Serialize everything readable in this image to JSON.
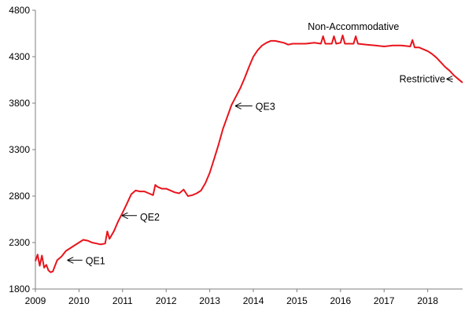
{
  "chart_data": {
    "type": "line",
    "title": "",
    "xlabel": "",
    "ylabel": "",
    "xlim": [
      2009,
      2018.8
    ],
    "ylim": [
      1800,
      4800
    ],
    "xticks": [
      2009,
      2010,
      2011,
      2012,
      2013,
      2014,
      2015,
      2016,
      2017,
      2018
    ],
    "xtick_labels": [
      "2009",
      "2010",
      "2011",
      "2012",
      "2013",
      "2014",
      "2015",
      "2016",
      "2017",
      "2018"
    ],
    "yticks": [
      1800,
      2300,
      2800,
      3300,
      3800,
      4300,
      4800
    ],
    "ytick_labels": [
      "1800",
      "2300",
      "2800",
      "3300",
      "3800",
      "4300",
      "4800"
    ],
    "grid": false,
    "legend": "none",
    "series": [
      {
        "color": "#e8141c",
        "x": [
          2009.0,
          2009.05,
          2009.1,
          2009.15,
          2009.2,
          2009.25,
          2009.3,
          2009.35,
          2009.4,
          2009.45,
          2009.5,
          2009.6,
          2009.7,
          2009.8,
          2009.9,
          2010.0,
          2010.1,
          2010.2,
          2010.3,
          2010.4,
          2010.5,
          2010.6,
          2010.65,
          2010.7,
          2010.8,
          2010.9,
          2011.0,
          2011.1,
          2011.2,
          2011.3,
          2011.4,
          2011.5,
          2011.6,
          2011.7,
          2011.75,
          2011.8,
          2011.9,
          2012.0,
          2012.1,
          2012.2,
          2012.3,
          2012.4,
          2012.5,
          2012.6,
          2012.7,
          2012.8,
          2012.9,
          2013.0,
          2013.1,
          2013.2,
          2013.3,
          2013.4,
          2013.5,
          2013.6,
          2013.7,
          2013.8,
          2013.9,
          2014.0,
          2014.1,
          2014.2,
          2014.3,
          2014.4,
          2014.5,
          2014.6,
          2014.7,
          2014.8,
          2014.9,
          2015.0,
          2015.2,
          2015.4,
          2015.55,
          2015.6,
          2015.65,
          2015.8,
          2015.85,
          2015.9,
          2016.0,
          2016.05,
          2016.1,
          2016.3,
          2016.35,
          2016.4,
          2016.6,
          2016.8,
          2017.0,
          2017.2,
          2017.4,
          2017.6,
          2017.65,
          2017.7,
          2017.8,
          2017.9,
          2018.0,
          2018.1,
          2018.2,
          2018.3,
          2018.4,
          2018.5,
          2018.6,
          2018.7,
          2018.8
        ],
        "y": [
          2100,
          2170,
          2050,
          2160,
          2030,
          2060,
          2000,
          1980,
          1990,
          2050,
          2110,
          2150,
          2210,
          2240,
          2270,
          2300,
          2330,
          2320,
          2300,
          2290,
          2280,
          2290,
          2420,
          2340,
          2420,
          2530,
          2620,
          2720,
          2820,
          2860,
          2850,
          2850,
          2830,
          2810,
          2920,
          2900,
          2880,
          2880,
          2860,
          2840,
          2830,
          2870,
          2800,
          2810,
          2830,
          2860,
          2940,
          3050,
          3200,
          3350,
          3520,
          3650,
          3780,
          3870,
          3960,
          4070,
          4190,
          4300,
          4370,
          4420,
          4450,
          4470,
          4470,
          4460,
          4450,
          4430,
          4440,
          4440,
          4440,
          4450,
          4440,
          4520,
          4440,
          4440,
          4520,
          4440,
          4450,
          4530,
          4440,
          4440,
          4520,
          4440,
          4430,
          4420,
          4410,
          4420,
          4420,
          4410,
          4480,
          4400,
          4400,
          4380,
          4360,
          4330,
          4290,
          4240,
          4190,
          4150,
          4100,
          4060,
          4020
        ]
      }
    ],
    "annotations": [
      {
        "text": "QE1",
        "arrow_to": [
          2009.75,
          2110
        ],
        "text_at": [
          2010.15,
          2100
        ]
      },
      {
        "text": "QE2",
        "arrow_to": [
          2011.0,
          2590
        ],
        "text_at": [
          2011.4,
          2570
        ]
      },
      {
        "text": "QE3",
        "arrow_to": [
          2013.6,
          3770
        ],
        "text_at": [
          2014.05,
          3760
        ]
      },
      {
        "text": "Non-Accommodative",
        "text_at": [
          2015.25,
          4620
        ]
      },
      {
        "text": "Restrictive",
        "arrow_to": [
          2018.45,
          4060
        ],
        "text_at": [
          2017.35,
          4060
        ]
      }
    ]
  }
}
